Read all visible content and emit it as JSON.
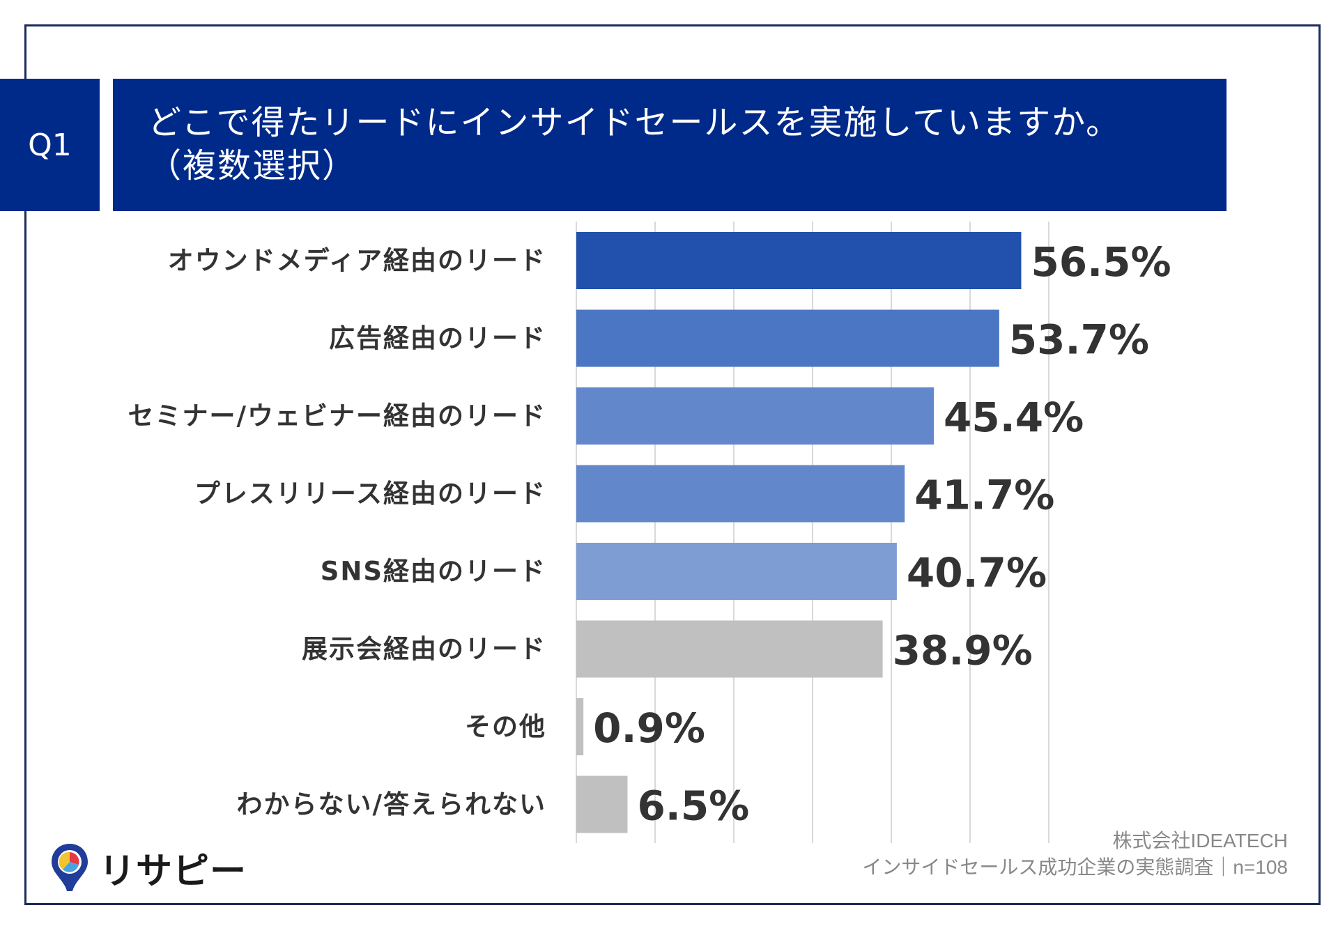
{
  "header": {
    "badge": "Q1",
    "title_line1": "どこで得たリードにインサイドセールスを実施していますか。",
    "title_line2": "（複数選択）"
  },
  "chart_data": {
    "type": "bar",
    "orientation": "horizontal",
    "title": "どこで得たリードにインサイドセールスを実施していますか。（複数選択）",
    "categories": [
      "オウンドメディア経由のリード",
      "広告経由のリード",
      "セミナー/ウェビナー経由のリード",
      "プレスリリース経由のリード",
      "SNS経由のリード",
      "展示会経由のリード",
      "その他",
      "わからない/答えられない"
    ],
    "values": [
      56.5,
      53.7,
      45.4,
      41.7,
      40.7,
      38.9,
      0.9,
      6.5
    ],
    "value_labels": [
      "56.5%",
      "53.7%",
      "45.4%",
      "41.7%",
      "40.7%",
      "38.9%",
      "0.9%",
      "6.5%"
    ],
    "colors": [
      "#2150ad",
      "#4a76c3",
      "#6387cb",
      "#6387cb",
      "#7d9dd3",
      "#c0c0c0",
      "#c0c0c0",
      "#c0c0c0"
    ],
    "xlim": [
      0,
      60
    ],
    "grid": true,
    "xlabel": "",
    "ylabel": ""
  },
  "logo": {
    "text": "リサピー",
    "icon": "pin-pie-icon"
  },
  "source": {
    "line1": "株式会社IDEATECH",
    "line2": "インサイドセールス成功企業の実態調査｜n=108"
  }
}
